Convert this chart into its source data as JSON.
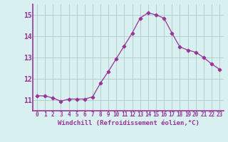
{
  "x": [
    0,
    1,
    2,
    3,
    4,
    5,
    6,
    7,
    8,
    9,
    10,
    11,
    12,
    13,
    14,
    15,
    16,
    17,
    18,
    19,
    20,
    21,
    22,
    23
  ],
  "y": [
    11.2,
    11.2,
    11.1,
    10.95,
    11.05,
    11.05,
    11.05,
    11.15,
    11.8,
    12.35,
    12.95,
    13.55,
    14.15,
    14.85,
    15.1,
    15.0,
    14.85,
    14.15,
    13.5,
    13.35,
    13.25,
    13.0,
    12.7,
    12.45
  ],
  "line_color": "#993399",
  "marker": "D",
  "marker_size": 2.5,
  "bg_color": "#d8f0f0",
  "grid_color": "#b0c8c8",
  "xlabel": "Windchill (Refroidissement éolien,°C)",
  "xlabel_color": "#993399",
  "tick_color": "#993399",
  "ylim": [
    10.5,
    15.5
  ],
  "xlim": [
    -0.5,
    23.5
  ],
  "yticks": [
    11,
    12,
    13,
    14,
    15
  ],
  "xticks": [
    0,
    1,
    2,
    3,
    4,
    5,
    6,
    7,
    8,
    9,
    10,
    11,
    12,
    13,
    14,
    15,
    16,
    17,
    18,
    19,
    20,
    21,
    22,
    23
  ]
}
